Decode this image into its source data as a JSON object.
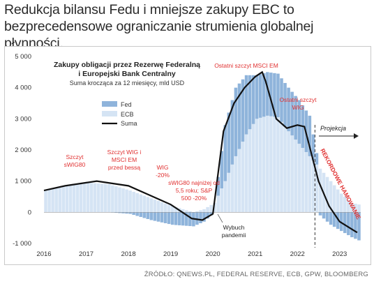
{
  "headline": "Redukcja bilansu Fedu i mniejsze zakupy EBC to bezprecedensowe ograniczanie strumienia globalnej płynności.",
  "source": "ŹRÓDŁO: QNEWS.PL, FEDERAL RESERVE, ECB, GPW, BLOOMBERG",
  "colors": {
    "fed": "#8fb4db",
    "ecb": "#d5e4f4",
    "suma": "#111111",
    "annotation": "#e03030",
    "dashed_line": "#555555"
  },
  "chart_data": {
    "type": "bar",
    "title": "Zakupy obligacji przez Rezerwę Federalną i Europejski Bank Centralny",
    "subtitle": "Suma krocząca za 12 miesięcy, mld USD",
    "ylim": [
      -1000,
      5000
    ],
    "y_ticks": [
      -1000,
      0,
      1000,
      2000,
      3000,
      4000,
      5000
    ],
    "y_tick_labels": [
      "-1 000",
      "0",
      "1 000",
      "2 000",
      "3 000",
      "4 000",
      "5 000"
    ],
    "x_tick_labels": [
      "2016",
      "2017",
      "2018",
      "2019",
      "2020",
      "2021",
      "2022",
      "2023"
    ],
    "x_range": [
      "2016-01",
      "2023-06"
    ],
    "legend": [
      "Fed",
      "ECB",
      "Suma"
    ],
    "legend_position": "top-center",
    "series": [
      {
        "name": "Fed",
        "kind": "bar",
        "x": [
          "2016-01",
          "2016-07",
          "2017-01",
          "2017-07",
          "2018-01",
          "2018-07",
          "2019-01",
          "2019-07",
          "2019-10",
          "2020-01",
          "2020-04",
          "2020-07",
          "2020-10",
          "2021-01",
          "2021-04",
          "2021-07",
          "2021-10",
          "2022-01",
          "2022-04",
          "2022-07",
          "2022-10",
          "2023-01",
          "2023-04",
          "2023-06"
        ],
        "values": [
          0,
          0,
          0,
          0,
          -50,
          -250,
          -400,
          -450,
          -300,
          0,
          1800,
          2200,
          1900,
          1400,
          1400,
          1400,
          1400,
          1400,
          1300,
          -100,
          -400,
          -600,
          -800,
          -900
        ]
      },
      {
        "name": "ECB",
        "kind": "bar",
        "x": [
          "2016-01",
          "2016-07",
          "2017-01",
          "2017-07",
          "2018-01",
          "2018-07",
          "2019-01",
          "2019-07",
          "2019-10",
          "2020-01",
          "2020-04",
          "2020-07",
          "2020-10",
          "2021-01",
          "2021-04",
          "2021-07",
          "2021-10",
          "2022-01",
          "2022-04",
          "2022-07",
          "2022-10",
          "2023-01",
          "2023-04",
          "2023-06"
        ],
        "values": [
          700,
          850,
          950,
          900,
          700,
          450,
          200,
          0,
          100,
          300,
          1000,
          1800,
          2500,
          3000,
          3100,
          3050,
          2600,
          2200,
          1800,
          1400,
          1000,
          600,
          300,
          250
        ]
      },
      {
        "name": "Suma",
        "kind": "line",
        "x": [
          "2016-01",
          "2016-07",
          "2017-01",
          "2017-04",
          "2017-07",
          "2018-01",
          "2018-07",
          "2019-01",
          "2019-07",
          "2019-10",
          "2020-01",
          "2020-04",
          "2020-07",
          "2020-10",
          "2021-01",
          "2021-03",
          "2021-04",
          "2021-07",
          "2021-10",
          "2022-01",
          "2022-03",
          "2022-07",
          "2022-10",
          "2023-01",
          "2023-06"
        ],
        "values": [
          700,
          850,
          950,
          1000,
          950,
          850,
          550,
          250,
          -200,
          -250,
          -50,
          2600,
          3500,
          4000,
          4350,
          4500,
          4200,
          3000,
          2700,
          2800,
          2750,
          1000,
          200,
          -300,
          -650
        ]
      }
    ],
    "annotations": [
      {
        "text": "Ostatni szczyt MSCI EM",
        "x": "2021-03",
        "y": 4700
      },
      {
        "text": "Ostatni szczyt WIG",
        "x": "2022-01",
        "y": 3500
      },
      {
        "text": "Szczyt sWIG80",
        "x": "2017-01",
        "y": 1650
      },
      {
        "text": "Szczyt WIG i MSCI EM przed bessą",
        "x": "2018-01",
        "y": 1650
      },
      {
        "text": "WIG -20%",
        "x": "2018-11",
        "y": 1300
      },
      {
        "text": "sWIG80 najniżej od 5,5 roku; S&P 500 -20%",
        "x": "2019-07",
        "y": 950
      },
      {
        "text": "Wybuch pandemii",
        "x": "2020-01",
        "y": -500
      },
      {
        "text": "Projekcja",
        "x": "2022-09",
        "y": 2600
      },
      {
        "text": "REKORDOWE HAMOWANIE",
        "x": "2022-08",
        "y": 1400
      }
    ],
    "projection_start": "2022-06"
  }
}
